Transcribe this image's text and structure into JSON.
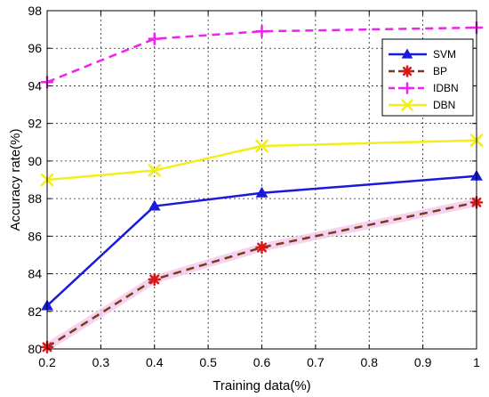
{
  "chart_data": {
    "type": "line",
    "xlabel": "Training data(%)",
    "ylabel": "Accuracy rate(%)",
    "xlim": [
      0.2,
      1.0
    ],
    "ylim": [
      80,
      98
    ],
    "xticks": [
      "0.2",
      "0.3",
      "0.4",
      "0.5",
      "0.6",
      "0.7",
      "0.8",
      "0.9",
      "1"
    ],
    "yticks": [
      "80",
      "82",
      "84",
      "86",
      "88",
      "90",
      "92",
      "94",
      "96",
      "98"
    ],
    "grid": true,
    "legend_position": "top-right",
    "series": [
      {
        "name": "SVM",
        "color": "#1a1adb",
        "line_style": "solid",
        "marker": "triangle",
        "x": [
          0.2,
          0.4,
          0.6,
          1.0
        ],
        "y": [
          82.3,
          87.6,
          88.3,
          89.2
        ]
      },
      {
        "name": "BP",
        "color": "#7a3b1a",
        "marker_color": "#d61a1a",
        "line_style": "dashed",
        "marker": "asterisk",
        "x": [
          0.2,
          0.4,
          0.6,
          1.0
        ],
        "y": [
          80.1,
          83.7,
          85.4,
          87.8
        ]
      },
      {
        "name": "IDBN",
        "color": "#ee22ee",
        "line_style": "dashed",
        "marker": "plus",
        "x": [
          0.2,
          0.4,
          0.6,
          1.0
        ],
        "y": [
          94.2,
          96.5,
          96.9,
          97.1
        ]
      },
      {
        "name": "DBN",
        "color": "#f2ee1a",
        "line_style": "solid",
        "marker": "x",
        "x": [
          0.2,
          0.4,
          0.6,
          1.0
        ],
        "y": [
          89.0,
          89.5,
          90.8,
          91.1
        ]
      }
    ]
  }
}
